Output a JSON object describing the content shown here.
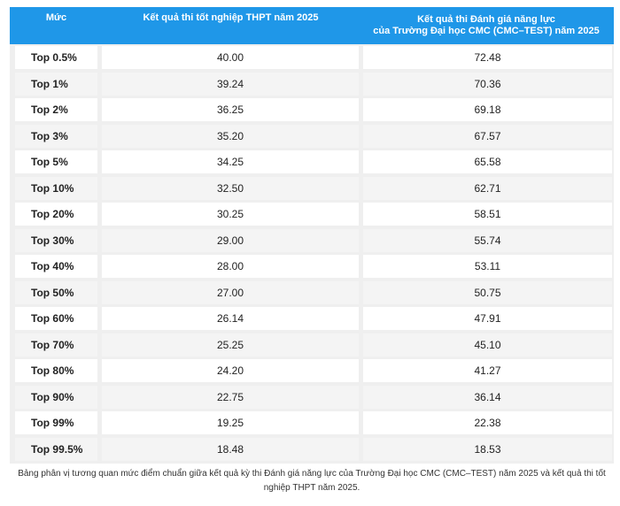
{
  "table": {
    "headers": {
      "level": "Mức",
      "thpt": "Kết quả thi tốt nghiệp THPT năm 2025",
      "cmc_line1": "Kết quả thi Đánh giá năng lực",
      "cmc_line2": "của Trường Đại học CMC (CMC–TEST) năm 2025"
    },
    "rows": [
      {
        "level": "Top 0.5%",
        "thpt": "40.00",
        "cmc": "72.48"
      },
      {
        "level": "Top 1%",
        "thpt": "39.24",
        "cmc": "70.36"
      },
      {
        "level": "Top 2%",
        "thpt": "36.25",
        "cmc": "69.18"
      },
      {
        "level": "Top 3%",
        "thpt": "35.20",
        "cmc": "67.57"
      },
      {
        "level": "Top 5%",
        "thpt": "34.25",
        "cmc": "65.58"
      },
      {
        "level": "Top 10%",
        "thpt": "32.50",
        "cmc": "62.71"
      },
      {
        "level": "Top 20%",
        "thpt": "30.25",
        "cmc": "58.51"
      },
      {
        "level": "Top 30%",
        "thpt": "29.00",
        "cmc": "55.74"
      },
      {
        "level": "Top 40%",
        "thpt": "28.00",
        "cmc": "53.11"
      },
      {
        "level": "Top 50%",
        "thpt": "27.00",
        "cmc": "50.75"
      },
      {
        "level": "Top 60%",
        "thpt": "26.14",
        "cmc": "47.91"
      },
      {
        "level": "Top 70%",
        "thpt": "25.25",
        "cmc": "45.10"
      },
      {
        "level": "Top 80%",
        "thpt": "24.20",
        "cmc": "41.27"
      },
      {
        "level": "Top 90%",
        "thpt": "22.75",
        "cmc": "36.14"
      },
      {
        "level": "Top 99%",
        "thpt": "19.25",
        "cmc": "22.38"
      },
      {
        "level": "Top 99.5%",
        "thpt": "18.48",
        "cmc": "18.53"
      }
    ]
  },
  "caption": "Bảng phân vị tương quan mức điểm chuẩn giữa kết quả kỳ thi Đánh giá năng lực của Trường Đại học CMC (CMC–TEST) năm 2025 và kết quả thi tốt nghiệp THPT năm 2025.",
  "colors": {
    "header_bg": "#1f97e8",
    "header_text": "#ffffff",
    "row_bg": "#ffffff",
    "row_alt_bg": "#f4f4f4",
    "grid_bg": "#efefef"
  }
}
